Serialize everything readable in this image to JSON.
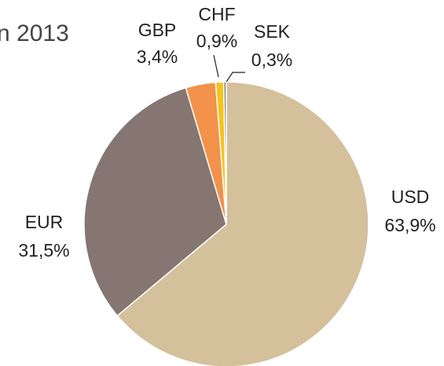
{
  "chart_data": {
    "type": "pie",
    "title": "n 2013",
    "categories": [
      "USD",
      "EUR",
      "GBP",
      "CHF",
      "SEK"
    ],
    "values": [
      63.9,
      31.5,
      3.4,
      0.9,
      0.3
    ],
    "value_labels": [
      "63,9%",
      "31,5%",
      "3,4%",
      "0,9%",
      "0,3%"
    ],
    "colors": [
      "#d4c09b",
      "#857672",
      "#f2924b",
      "#f7c31c",
      "#8c8c8c"
    ]
  }
}
